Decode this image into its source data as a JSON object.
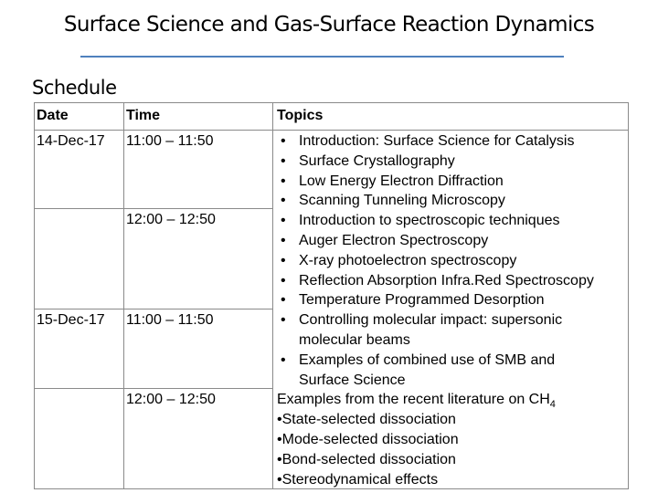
{
  "header": {
    "title": "Surface Science and Gas-Surface Reaction Dynamics",
    "section": "Schedule"
  },
  "table": {
    "columns": [
      "Date",
      "Time",
      "Topics"
    ],
    "rows": [
      {
        "date": "14-Dec-17",
        "time": "11:00 – 11:50"
      },
      {
        "date": null,
        "time": "12:00 – 12:50"
      },
      {
        "date": "15-Dec-17",
        "time": "11:00 – 11:50"
      },
      {
        "date": null,
        "time": "12:00 – 12:50"
      }
    ],
    "topics": {
      "bullets": [
        "Introduction: Surface Science for Catalysis",
        "Surface Crystallography",
        "Low Energy Electron Diffraction",
        "Scanning Tunneling Microscopy",
        "Introduction to spectroscopic techniques",
        "Auger Electron Spectroscopy",
        "X-ray photoelectron spectroscopy",
        "Reflection Absorption Infra.Red Spectroscopy",
        "Temperature Programmed Desorption",
        "Controlling molecular impact: supersonic molecular beams",
        "Examples of combined use of SMB and Surface Science"
      ],
      "examples_heading": {
        "text": "Examples from the recent literature on CH",
        "subscript": "4"
      },
      "examples": [
        "State-selected dissociation",
        "Mode-selected dissociation",
        "Bond-selected dissociation",
        "Stereodynamical effects"
      ]
    }
  }
}
